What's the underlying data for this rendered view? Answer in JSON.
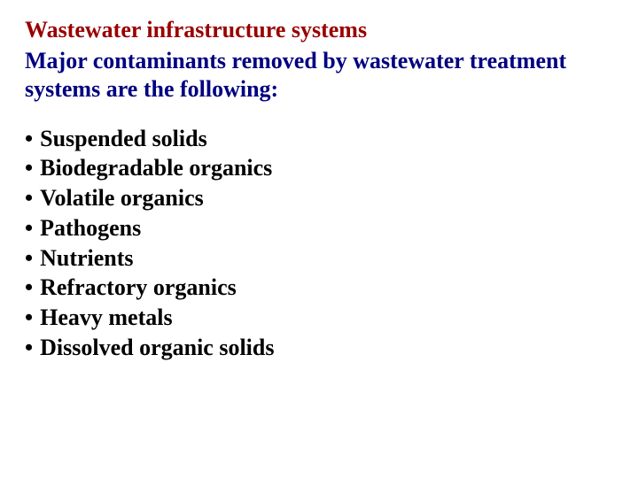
{
  "heading": {
    "line1": "Wastewater infrastructure systems",
    "line2": "Major contaminants removed by wastewater treatment systems are the following:"
  },
  "bullet_symbol": "•",
  "items": [
    "Suspended solids",
    "Biodegradable organics",
    "Volatile organics",
    "Pathogens",
    "Nutrients",
    "Refractory organics",
    "Heavy metals",
    "Dissolved organic solids"
  ],
  "colors": {
    "title1": "#990000",
    "title2": "#000080",
    "body": "#000000",
    "background": "#ffffff"
  },
  "font": {
    "family": "Times New Roman",
    "title_size_pt": 20,
    "body_size_pt": 20,
    "weight": "bold"
  }
}
